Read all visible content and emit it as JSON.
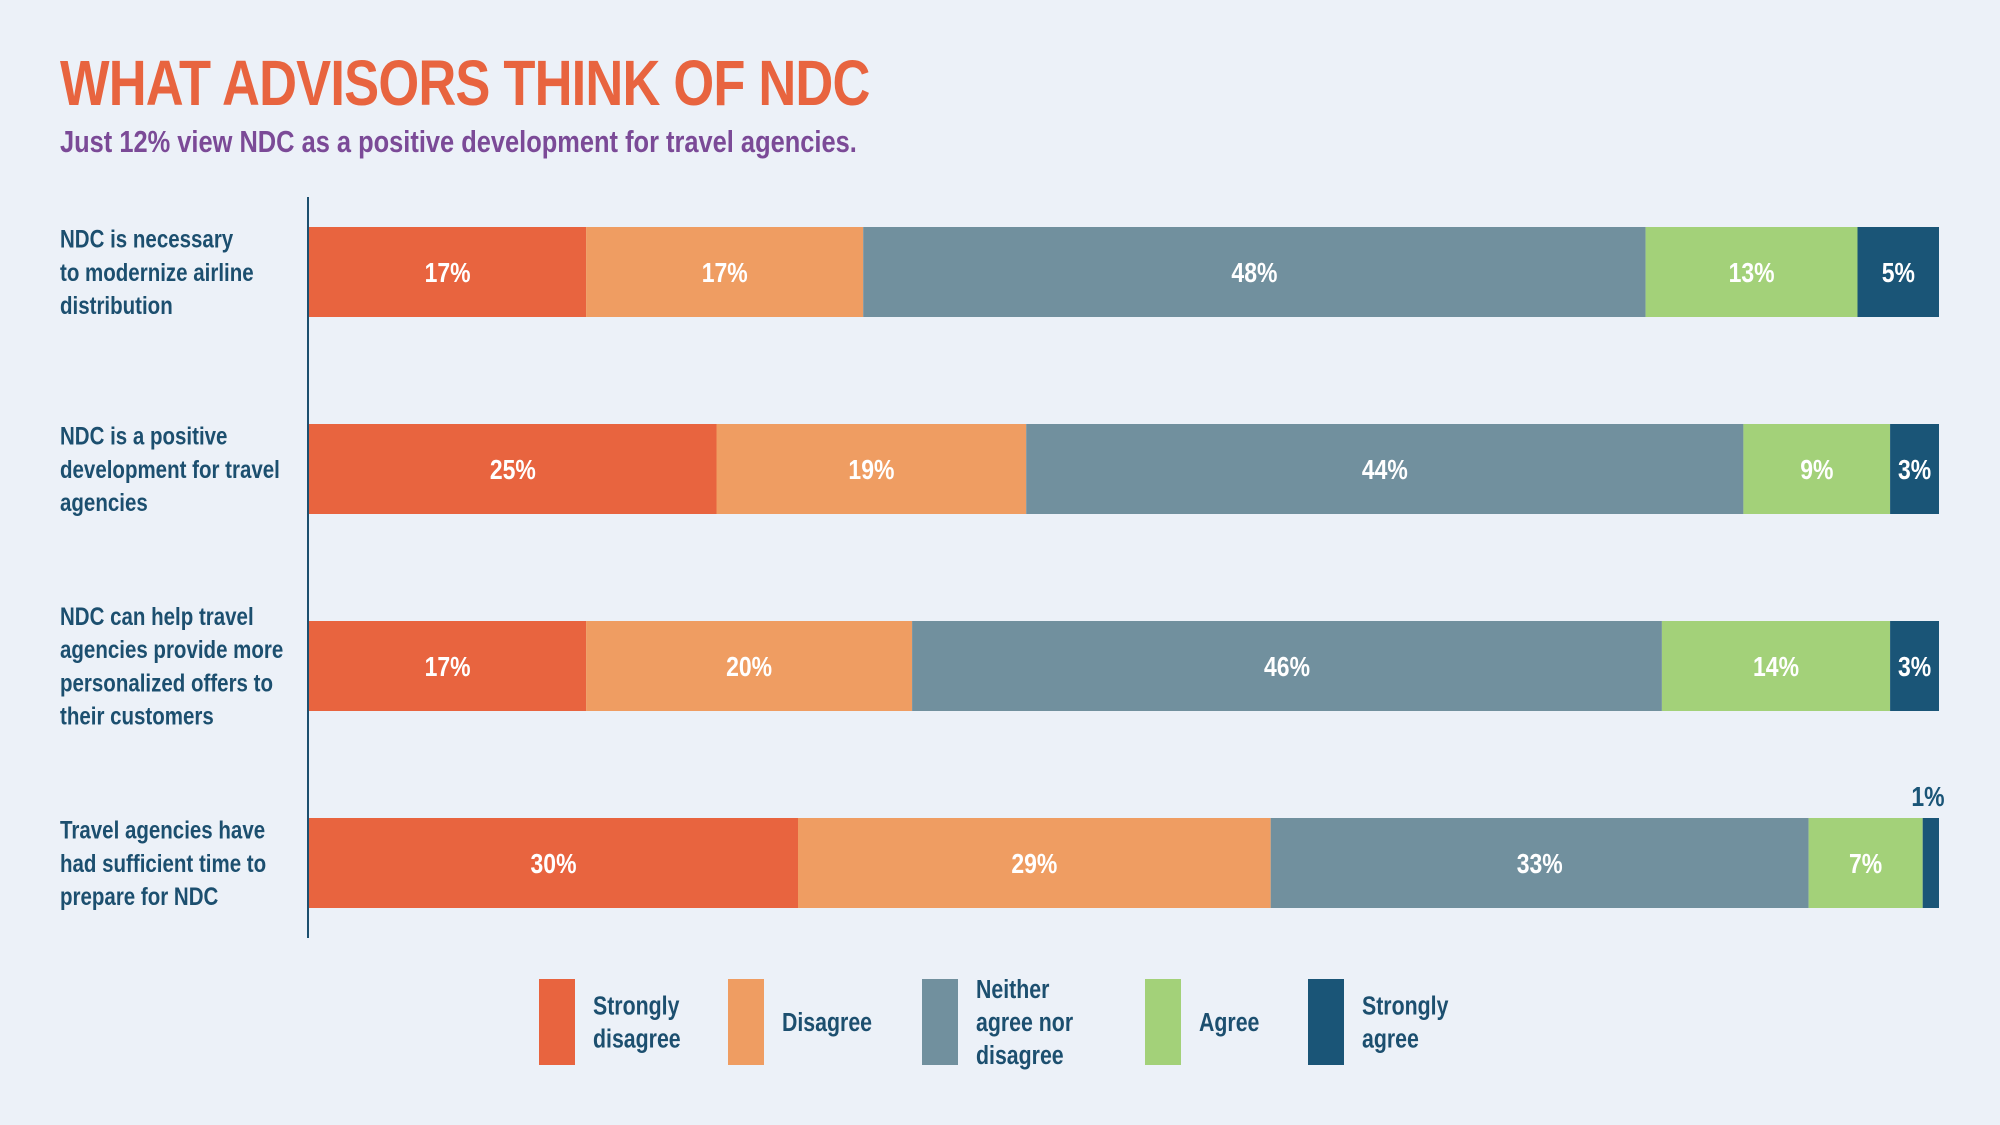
{
  "title": "WHAT ADVISORS THINK OF NDC",
  "subtitle": "Just 12% view NDC as a positive development for travel agencies.",
  "colors": {
    "title": "#e8643f",
    "subtitle": "#7b4a97",
    "label_text": "#1c4f6f",
    "axis": "#1c4f6f",
    "value_text": "#ffffff"
  },
  "chart_data": {
    "type": "bar",
    "orientation": "horizontal",
    "stacked": true,
    "xlim": [
      0,
      100
    ],
    "unit": "%",
    "grid": false,
    "legend_position": "bottom",
    "categories": [
      [
        "NDC is necessary",
        "to modernize airline",
        "distribution"
      ],
      [
        "NDC is a positive",
        "development for travel",
        "agencies"
      ],
      [
        "NDC can help travel",
        "agencies provide more",
        "personalized offers to",
        "their customers"
      ],
      [
        "Travel agencies have",
        "had sufficient time to",
        "prepare for NDC"
      ]
    ],
    "series": [
      {
        "name": [
          "Strongly",
          "disagree"
        ],
        "color": "#e8643f",
        "values": [
          17,
          25,
          17,
          30
        ]
      },
      {
        "name": [
          "Disagree"
        ],
        "color": "#ef9d62",
        "values": [
          17,
          19,
          20,
          29
        ]
      },
      {
        "name": [
          "Neither",
          "agree nor",
          "disagree"
        ],
        "color": "#71909e",
        "values": [
          48,
          44,
          46,
          33
        ]
      },
      {
        "name": [
          "Agree"
        ],
        "color": "#a3d179",
        "values": [
          13,
          9,
          14,
          7
        ]
      },
      {
        "name": [
          "Strongly",
          "agree"
        ],
        "color": "#1a5577",
        "values": [
          5,
          3,
          3,
          1
        ]
      }
    ]
  }
}
